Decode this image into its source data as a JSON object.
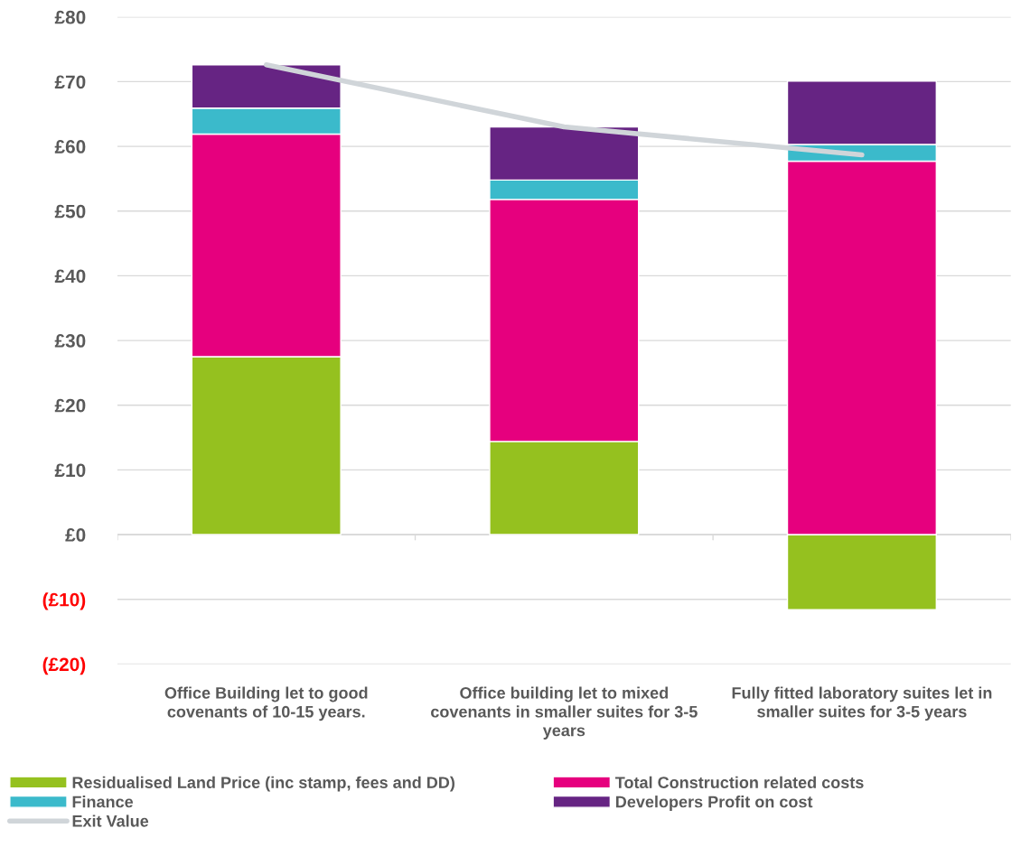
{
  "chart_data": {
    "type": "bar",
    "stacked": true,
    "categories": [
      "Office Building let to good covenants of 10-15 years.",
      "Office building let to mixed covenants in smaller suites for 3-5 years",
      "Fully fitted laboratory suites let in smaller suites for 3-5 years"
    ],
    "series": [
      {
        "name": "Residualised Land Price (inc stamp, fees and DD)",
        "color": "#95c11f",
        "values": [
          27.5,
          14.4,
          -11.6
        ]
      },
      {
        "name": "Total Construction related costs",
        "color": "#e6007e",
        "values": [
          34.4,
          37.4,
          57.7
        ]
      },
      {
        "name": "Finance",
        "color": "#3bbacb",
        "values": [
          4.0,
          3.0,
          2.6
        ]
      },
      {
        "name": "Developers Profit on cost",
        "color": "#662483",
        "values": [
          6.7,
          8.2,
          9.8
        ]
      },
      {
        "name": "Exit Value",
        "type": "line",
        "color": "#d0d5d9",
        "values": [
          72.6,
          63.0,
          58.7
        ]
      }
    ],
    "ylim": [
      -20,
      80
    ],
    "yticks": [
      {
        "value": -20,
        "label": "(£20)"
      },
      {
        "value": -10,
        "label": "(£10)"
      },
      {
        "value": 0,
        "label": "£0"
      },
      {
        "value": 10,
        "label": "£10"
      },
      {
        "value": 20,
        "label": "£20"
      },
      {
        "value": 30,
        "label": "£30"
      },
      {
        "value": 40,
        "label": "£40"
      },
      {
        "value": 50,
        "label": "£50"
      },
      {
        "value": 60,
        "label": "£60"
      },
      {
        "value": 70,
        "label": "£70"
      },
      {
        "value": 80,
        "label": "£80"
      }
    ],
    "grid": "y",
    "legend": "bottom"
  }
}
